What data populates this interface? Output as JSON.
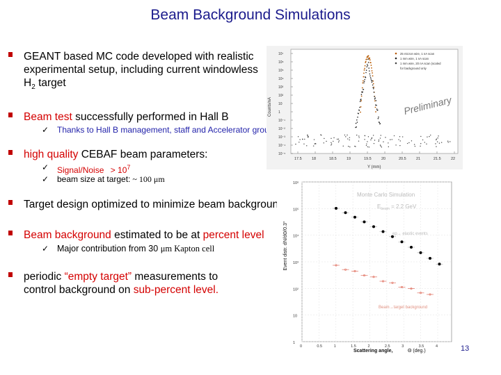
{
  "slide": {
    "title": "Beam Background Simulations",
    "page_number": "13"
  },
  "bullets": [
    {
      "text_line1": "GEANT based MC code developed with realistic",
      "text_line2": "experimental setup, including current windowless",
      "text_line3_main": "H",
      "text_line3_sub": "2",
      "text_line3_end": " target"
    },
    {
      "text_red": "Beam test",
      "text_black": " successfully performed in Hall B",
      "sub": "Thanks to Hall B management, staff and Accelerator group"
    },
    {
      "text_red": "high quality",
      "text_black": " CEBAF beam parameters:",
      "sub1_red": "Signal/Noise",
      "sub1_black": "> 10",
      "sub1_sup": "7",
      "sub2_black": "beam size at target:",
      "sub2_serif": " ~ 100 μm"
    },
    {
      "text": "Target design optimized to minimize beam background"
    },
    {
      "text_red1": "Beam background",
      "text_black1": " estimated to be at ",
      "text_red2": "percent level",
      "sub_black": "Major contribution from 30 ",
      "sub_serif": "μm Kapton cell"
    },
    {
      "text_black1": "periodic ",
      "text_red1": "“empty target”",
      "text_black2": " measurements to",
      "text_black3": "control background on ",
      "text_red2": "sub-percent level."
    }
  ],
  "plot_top": {
    "watermark": "Preliminary",
    "y_label": "Counts/nA",
    "x_label": "Y (mm)",
    "y_ticks": [
      "10⁷",
      "10⁶",
      "10⁵",
      "10⁴",
      "10³",
      "10²",
      "10",
      "1",
      "10⁻¹",
      "10⁻²",
      "10⁻³",
      "10⁻⁴",
      "10⁻⁵"
    ],
    "x_ticks": [
      "17.5",
      "18",
      "18.5",
      "19",
      "19.5",
      "20",
      "20.5",
      "21",
      "21.5",
      "22"
    ],
    "legend": [
      {
        "label": "25 micron wire, 1 nA scan",
        "color": "#b85a00"
      },
      {
        "label": "1 mm wire, 1 nA scan",
        "color": "#222222"
      },
      {
        "label": "1 mm wire, 20 nA scan (scaled",
        "color": "#444444"
      },
      {
        "label": "for background only",
        "color": "#444444"
      }
    ]
  },
  "plot_bottom": {
    "annotation_title": "Monte Carlo Simulation",
    "annotation_energy": "E",
    "annotation_energy_sub": "beam",
    "annotation_energy_value": " = 2.2 GeV",
    "label_ep": "ep→ elastic events",
    "label_bg": "Beam→target background",
    "y_label": "Event distr. dN/dΘ/0.3°",
    "x_label": "Scattering angle,",
    "x_unit": "Θ (deg.)",
    "y_ticks": [
      "10⁶",
      "10⁵",
      "10⁴",
      "10³",
      "10²",
      "10",
      "1"
    ],
    "x_ticks": [
      "0",
      "0.5",
      "1",
      "1.5",
      "2",
      "2.5",
      "3",
      "3.5",
      "4"
    ],
    "colors": {
      "ep": "#000000",
      "bg": "#e07060"
    }
  }
}
